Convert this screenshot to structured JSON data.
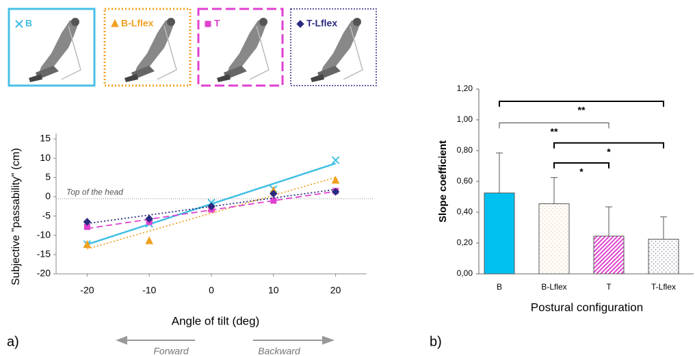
{
  "chart_data": [
    {
      "type": "scatter",
      "panel_label": "a)",
      "y_label": "Subjective \"passability\" (cm)",
      "x_label": "Angle of tilt (deg)",
      "direction_left": "Forward",
      "direction_right": "Backward",
      "reference": {
        "label": "Top of the head",
        "value": -0.5
      },
      "x": [
        -20,
        -10,
        0,
        10,
        20
      ],
      "xlim": [
        -25,
        25
      ],
      "xticks": [
        -20,
        -10,
        0,
        10,
        20
      ],
      "ylim": [
        -20,
        15
      ],
      "yticks": [
        15,
        10,
        5,
        0,
        -5,
        -10,
        -15,
        -20
      ],
      "trendlines": true,
      "series": [
        {
          "name": "B",
          "color": "#3fbfe3",
          "marker": "x",
          "line_style": "solid",
          "values": [
            -12.3,
            -7,
            -1.5,
            2,
            9.5
          ]
        },
        {
          "name": "B-Lflex",
          "color": "#f0a020",
          "marker": "triangle",
          "line_style": "dotted",
          "values": [
            -12.5,
            -11.5,
            -3,
            1.5,
            4.2
          ]
        },
        {
          "name": "T",
          "color": "#e040d0",
          "marker": "square",
          "line_style": "dashed",
          "values": [
            -7.8,
            -6.5,
            -3.3,
            -1,
            1.5
          ]
        },
        {
          "name": "T-Lflex",
          "color": "#2a2a80",
          "marker": "diamond",
          "line_style": "dotted",
          "values": [
            -6.5,
            -5.7,
            -2.5,
            0.8,
            1.3
          ]
        }
      ]
    },
    {
      "type": "bar",
      "panel_label": "b)",
      "y_label": "Slope coefficient",
      "x_label": "Postural configuration",
      "categories": [
        "B",
        "B-Lflex",
        "T",
        "T-Lflex"
      ],
      "values": [
        0.525,
        0.455,
        0.245,
        0.225
      ],
      "errors": [
        0.26,
        0.17,
        0.19,
        0.145
      ],
      "colors": [
        "#00c0f0",
        "#f0d8b8",
        "#e040d0",
        "#a8a8c0"
      ],
      "patterns": [
        "solid",
        "dots",
        "hatch",
        "dots"
      ],
      "ylim": [
        0,
        1.2
      ],
      "yticks": [
        {
          "value": 0,
          "label": "0,00"
        },
        {
          "value": 0.2,
          "label": "0,20"
        },
        {
          "value": 0.4,
          "label": "0,40"
        },
        {
          "value": 0.6,
          "label": "0,60"
        },
        {
          "value": 0.8,
          "label": "0,80"
        },
        {
          "value": 1,
          "label": "1,00"
        },
        {
          "value": 1.2,
          "label": "1,20"
        }
      ],
      "significance": [
        {
          "between": [
            "B",
            "T-Lflex"
          ],
          "label": "**",
          "y": 1.12
        },
        {
          "between": [
            "B",
            "T"
          ],
          "label": "**",
          "y": 0.98
        },
        {
          "between": [
            "B-Lflex",
            "T-Lflex"
          ],
          "label": "*",
          "y": 0.85
        },
        {
          "between": [
            "B-Lflex",
            "T"
          ],
          "label": "*",
          "y": 0.72
        }
      ]
    }
  ]
}
